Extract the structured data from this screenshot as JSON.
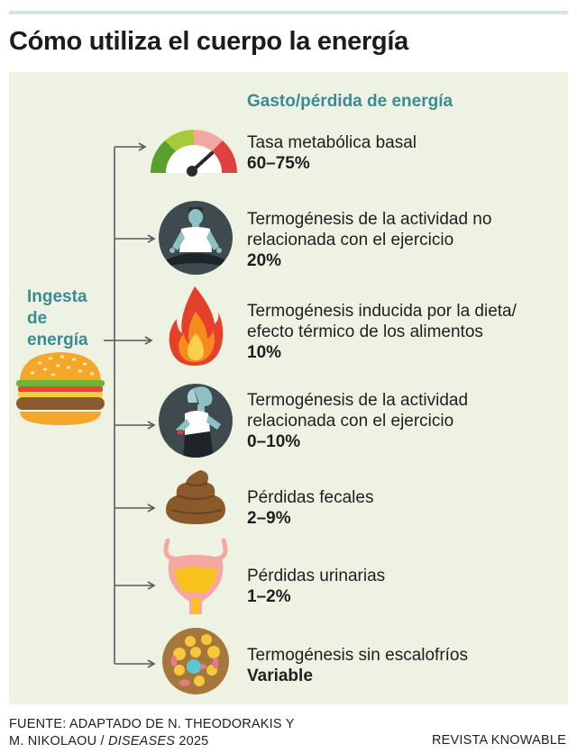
{
  "title": "Cómo utiliza el cuerpo la energía",
  "intake": {
    "line1": "Ingesta",
    "line2": "de",
    "line3": "energía"
  },
  "expense_header": "Gasto/pérdida de energía",
  "items": [
    {
      "label": "Tasa metabólica basal",
      "pct": "60–75%",
      "icon": "gauge-icon"
    },
    {
      "label_1": "Termogénesis de la actividad no",
      "label_2": "relacionada con el ejercicio",
      "pct": "20%",
      "icon": "meditating-person-icon"
    },
    {
      "label_1": "Termogénesis inducida por la dieta/",
      "label_2": "efecto térmico de los alimentos",
      "pct": "10%",
      "icon": "flame-icon"
    },
    {
      "label_1": "Termogénesis de la actividad",
      "label_2": "relacionada con el ejercicio",
      "pct": "0–10%",
      "icon": "running-person-icon"
    },
    {
      "label": "Pérdidas fecales",
      "pct": "2–9%",
      "icon": "poop-icon"
    },
    {
      "label": "Pérdidas urinarias",
      "pct": "1–2%",
      "icon": "bladder-icon"
    },
    {
      "label": "Termogénesis sin escalofríos",
      "pct": "Variable",
      "icon": "brown-fat-cell-icon"
    }
  ],
  "footer": {
    "source_1": "FUENTE: ADAPTADO DE N. THEODORAKIS Y",
    "source_2a": "M. NIKOLAOU / ",
    "source_2b": "DISEASES",
    "source_2c": " 2025",
    "credit": "REVISTA KNOWABLE"
  },
  "colors": {
    "accent": "#3b8a94",
    "panel": "#eef2e2",
    "header_line": "#d3e6e4"
  }
}
